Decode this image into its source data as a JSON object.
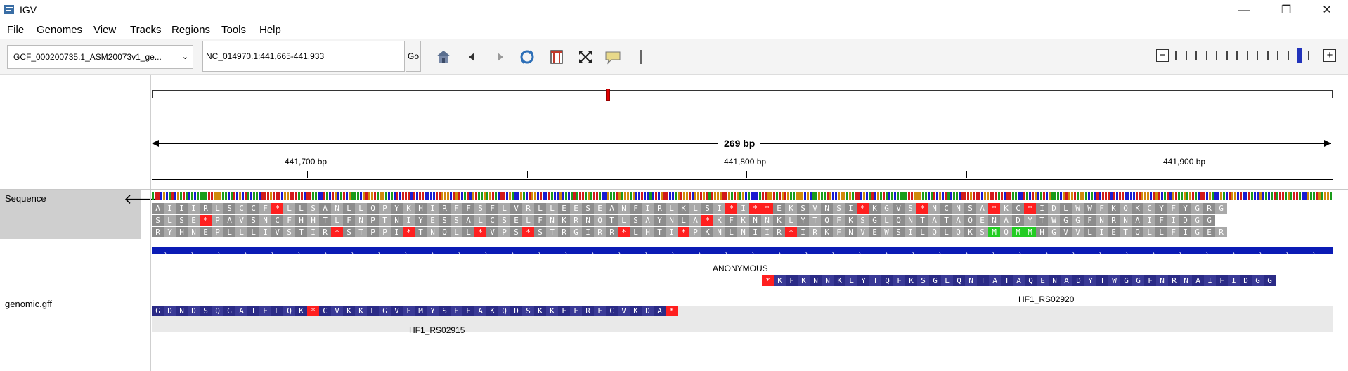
{
  "window": {
    "title": "IGV",
    "minimize": "—",
    "maximize": "❐",
    "close": "✕"
  },
  "menu": [
    "File",
    "Genomes",
    "View",
    "Tracks",
    "Regions",
    "Tools",
    "Help"
  ],
  "toolbar": {
    "genome": "GCF_000200735.1_ASM20073v1_ge...",
    "locus": "NC_014970.1:441,665-441,933",
    "go_label": "Go",
    "icons": [
      "home-icon",
      "back-icon",
      "forward-icon",
      "refresh-icon",
      "roi-icon",
      "fit-window-icon",
      "popup-info-icon",
      "divider-icon"
    ],
    "zoom_level_index": 12,
    "zoom_level_count": 14,
    "zoom_minus": "−",
    "zoom_plus": "+"
  },
  "ruler": {
    "span_label": "269 bp",
    "ticks": [
      "441,700 bp",
      "441,800 bp",
      "441,900 bp"
    ]
  },
  "tracks": {
    "sequence_label": "Sequence",
    "sequence_arrow": "🡐",
    "gff_label": "genomic.gff"
  },
  "amino_rows": [
    "AIIIRLSCCF*LLSANLLQPYKHIRFFSFLVRLLEESEANFIRLKLSI*I**EKSVNSI*KGVS*NCNSA*KC*IDLWWFKQKCYFYGRG",
    "SLSE*PAVSNCFHHTLFNPTNIYESSALCSELFNKRNQTLSAYNLA*KFKNNKLYTQFKSGLQNTATAQENADYTWGGFNRNAIFIDGG",
    "RYHNEPLLLIVSTIR*STPPI*TNQLL*VPS*STRGIRR*LHTI*PKNLNIIR*IRKFNVEWSILQLQKSMQMMHGVVLIETQLLFIGER"
  ],
  "features": {
    "anonymous_label": "ANONYMOUS",
    "gene1_label": "HF1_RS02920",
    "gene1_seq": "*KFKNNKLYTQFKSGLQNTATAQENADYTWGGFNRNAIFIDGG",
    "gene2_label": "HF1_RS02915",
    "gene2_seq": "GDNDSQGATELQK*CVKKLGVFMYSEEAKQDSKKFFRFCVKDA*"
  },
  "colors": {
    "stop": "#ff1f1f",
    "start": "#22cc22",
    "aa_dark": "#8c8c8c",
    "aa_light": "#a9a9a9",
    "gene": "#0a1bb5",
    "gene_aa": "#2b2b86"
  }
}
